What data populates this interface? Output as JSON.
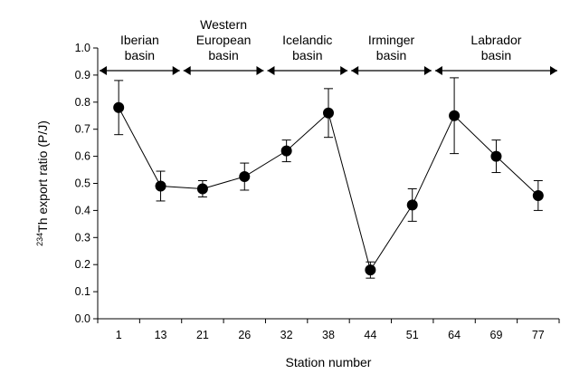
{
  "chart_data": {
    "type": "scatter",
    "connected": true,
    "title": "",
    "xlabel": "Station number",
    "ylabel_superscript": "234",
    "ylabel_text": "Th export ratio (P/J)",
    "ylim": [
      0.0,
      1.0
    ],
    "yticks": [
      "0.0",
      "0.1",
      "0.2",
      "0.3",
      "0.4",
      "0.5",
      "0.6",
      "0.7",
      "0.8",
      "0.9",
      "1.0"
    ],
    "categories": [
      "1",
      "13",
      "21",
      "26",
      "32",
      "38",
      "44",
      "51",
      "64",
      "69",
      "77"
    ],
    "series": [
      {
        "values": [
          0.78,
          0.49,
          0.48,
          0.525,
          0.62,
          0.76,
          0.18,
          0.42,
          0.75,
          0.6,
          0.455
        ],
        "error": [
          0.1,
          0.055,
          0.03,
          0.05,
          0.04,
          0.09,
          0.03,
          0.06,
          0.14,
          0.06,
          0.055
        ]
      }
    ],
    "grid": false,
    "regions": [
      {
        "lines": [
          "Iberian",
          "basin"
        ],
        "from_index": 0,
        "to_index": 1
      },
      {
        "lines": [
          "Western",
          "European",
          "basin"
        ],
        "from_index": 2,
        "to_index": 3
      },
      {
        "lines": [
          "Icelandic",
          "basin"
        ],
        "from_index": 4,
        "to_index": 5
      },
      {
        "lines": [
          "Irminger",
          "basin"
        ],
        "from_index": 6,
        "to_index": 7
      },
      {
        "lines": [
          "Labrador",
          "basin"
        ],
        "from_index": 8,
        "to_index": 10
      }
    ]
  }
}
